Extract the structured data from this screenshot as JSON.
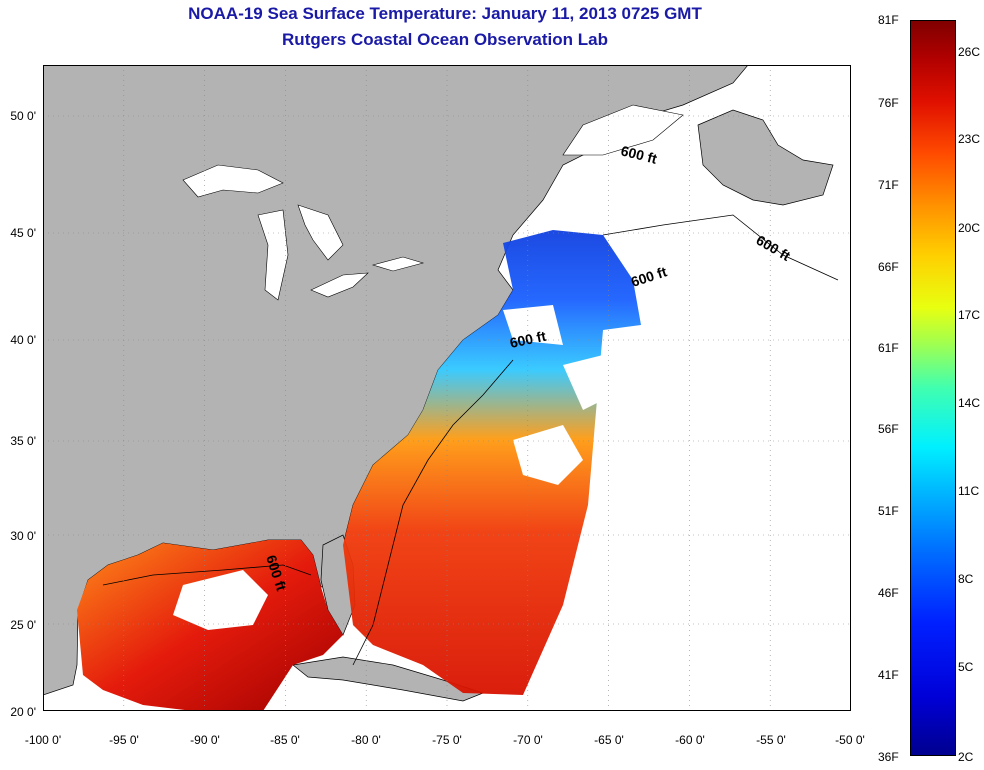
{
  "title": {
    "line1": "NOAA-19 Sea Surface Temperature:  January 11, 2013 0725 GMT",
    "line2": "Rutgers Coastal Ocean Observation Lab"
  },
  "map": {
    "lon_range": [
      -100,
      -50
    ],
    "lat_range": [
      20,
      52.5
    ],
    "grid": "dotted",
    "x_ticks": [
      "-100 0'",
      "-95 0'",
      "-90 0'",
      "-85 0'",
      "-80 0'",
      "-75 0'",
      "-70 0'",
      "-65 0'",
      "-60 0'",
      "-55 0'",
      "-50 0'"
    ],
    "y_ticks": [
      "20 0'",
      "25 0'",
      "30 0'",
      "35 0'",
      "40 0'",
      "45 0'",
      "50 0'"
    ],
    "contour_labels": [
      "600 ft",
      "600 ft",
      "600 ft",
      "600 ft",
      "600 ft"
    ],
    "colors": {
      "land": "#b3b3b3",
      "lakes_and_clouds": "#ffffff",
      "coast": "#000000"
    }
  },
  "colorbar": {
    "fahrenheit_labels": [
      "81F",
      "76F",
      "71F",
      "66F",
      "61F",
      "56F",
      "51F",
      "46F",
      "41F",
      "36F"
    ],
    "celsius_labels": [
      "26C",
      "23C",
      "20C",
      "17C",
      "14C",
      "11C",
      "8C",
      "5C",
      "2C"
    ],
    "range_f": [
      36,
      81
    ],
    "range_c": [
      2,
      27
    ],
    "colormap": "jet"
  }
}
